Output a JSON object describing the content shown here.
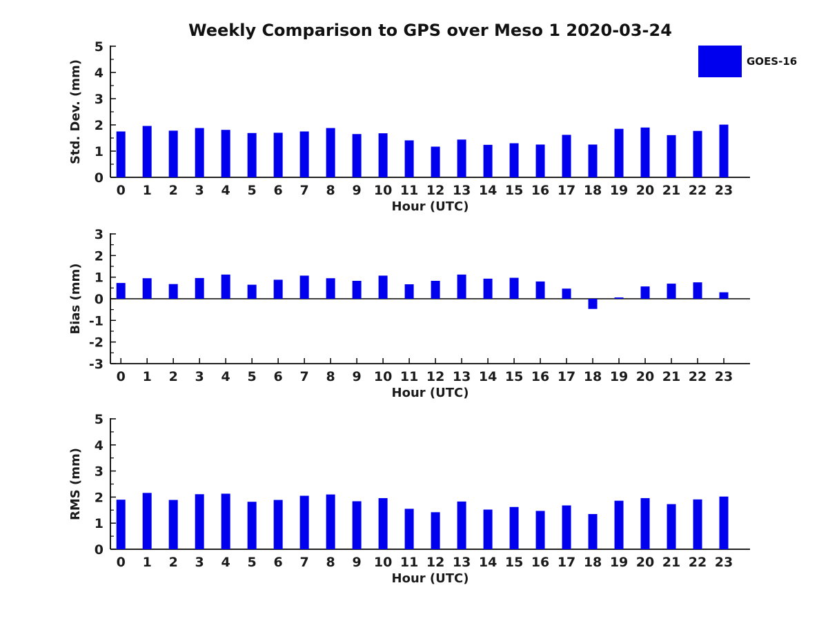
{
  "title": "Weekly Comparison to GPS over Meso 1 2020-03-24",
  "legend": {
    "label": "GOES-16",
    "color": "#0000EE",
    "position": "top-right"
  },
  "text_color": "#1a1a1a",
  "axis_color": "#000000",
  "chart_data": [
    {
      "type": "bar",
      "name": "std_dev",
      "series_name": "GOES-16",
      "bar_color": "#0000EE",
      "x": [
        0,
        1,
        2,
        3,
        4,
        5,
        6,
        7,
        8,
        9,
        10,
        11,
        12,
        13,
        14,
        15,
        16,
        17,
        18,
        19,
        20,
        21,
        22,
        23
      ],
      "values": [
        1.75,
        1.96,
        1.78,
        1.88,
        1.81,
        1.69,
        1.7,
        1.75,
        1.88,
        1.65,
        1.68,
        1.41,
        1.17,
        1.44,
        1.24,
        1.3,
        1.25,
        1.62,
        1.25,
        1.85,
        1.9,
        1.61,
        1.77,
        2.01
      ],
      "xlabel": "Hour (UTC)",
      "ylabel": "Std. Dev. (mm)",
      "ylim": [
        0,
        5
      ],
      "yticks": [
        0,
        1,
        2,
        3,
        4,
        5
      ],
      "minor_tick_step": 0.5,
      "grid": false,
      "legend_position": "outside-top-right"
    },
    {
      "type": "bar",
      "name": "bias",
      "series_name": "GOES-16",
      "bar_color": "#0000EE",
      "x": [
        0,
        1,
        2,
        3,
        4,
        5,
        6,
        7,
        8,
        9,
        10,
        11,
        12,
        13,
        14,
        15,
        16,
        17,
        18,
        19,
        20,
        21,
        22,
        23
      ],
      "values": [
        0.73,
        0.95,
        0.68,
        0.96,
        1.12,
        0.65,
        0.88,
        1.07,
        0.95,
        0.83,
        1.07,
        0.67,
        0.83,
        1.12,
        0.93,
        0.97,
        0.8,
        0.47,
        -0.47,
        0.06,
        0.57,
        0.7,
        0.76,
        0.3
      ],
      "xlabel": "Hour (UTC)",
      "ylabel": "Bias (mm)",
      "ylim": [
        -3,
        3
      ],
      "yticks": [
        -3,
        -2,
        -1,
        0,
        1,
        2,
        3
      ],
      "minor_tick_step": 0.5,
      "zero_line": true,
      "grid": false
    },
    {
      "type": "bar",
      "name": "rms",
      "series_name": "GOES-16",
      "bar_color": "#0000EE",
      "x": [
        0,
        1,
        2,
        3,
        4,
        5,
        6,
        7,
        8,
        9,
        10,
        11,
        12,
        13,
        14,
        15,
        16,
        17,
        18,
        19,
        20,
        21,
        22,
        23
      ],
      "values": [
        1.9,
        2.16,
        1.89,
        2.11,
        2.13,
        1.82,
        1.89,
        2.05,
        2.1,
        1.84,
        1.96,
        1.55,
        1.42,
        1.83,
        1.52,
        1.62,
        1.47,
        1.68,
        1.35,
        1.86,
        1.96,
        1.73,
        1.91,
        2.02
      ],
      "xlabel": "Hour (UTC)",
      "ylabel": "RMS (mm)",
      "ylim": [
        0,
        5
      ],
      "yticks": [
        0,
        1,
        2,
        3,
        4,
        5
      ],
      "minor_tick_step": 0.5,
      "grid": false
    }
  ]
}
